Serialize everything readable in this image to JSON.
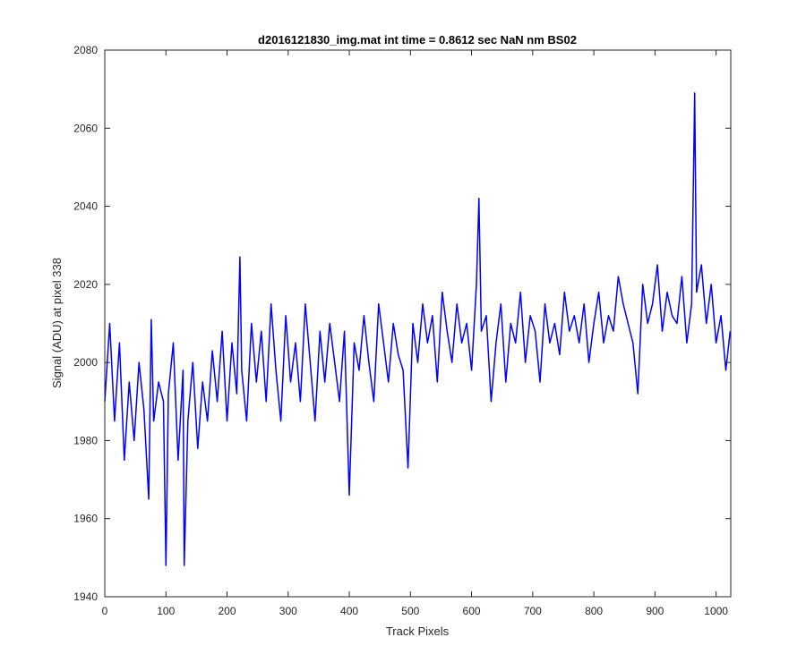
{
  "chart_data": {
    "type": "line",
    "title": "d2016121830_img.mat int time = 0.8612 sec  NaN nm BS02",
    "xlabel": "Track Pixels",
    "ylabel": "Signal (ADU) at pixel 338",
    "xlim": [
      0,
      1024
    ],
    "ylim": [
      1940,
      2080
    ],
    "xticks": [
      0,
      100,
      200,
      300,
      400,
      500,
      600,
      700,
      800,
      900,
      1000
    ],
    "yticks": [
      1940,
      1960,
      1980,
      2000,
      2020,
      2040,
      2060,
      2080
    ],
    "grid": false,
    "series": [
      {
        "color": "#0000ff",
        "x": [
          0,
          8,
          16,
          24,
          32,
          40,
          48,
          56,
          64,
          72,
          76,
          80,
          88,
          96,
          100,
          104,
          112,
          120,
          128,
          130,
          136,
          144,
          152,
          160,
          168,
          176,
          184,
          192,
          200,
          208,
          216,
          221,
          224,
          232,
          240,
          248,
          256,
          264,
          272,
          280,
          288,
          296,
          304,
          312,
          320,
          328,
          336,
          344,
          352,
          360,
          368,
          376,
          384,
          392,
          400,
          408,
          416,
          424,
          432,
          440,
          448,
          456,
          464,
          472,
          480,
          488,
          496,
          504,
          512,
          520,
          528,
          536,
          544,
          552,
          560,
          568,
          576,
          584,
          592,
          600,
          608,
          612,
          616,
          624,
          632,
          640,
          648,
          656,
          664,
          672,
          680,
          688,
          696,
          704,
          712,
          720,
          728,
          736,
          744,
          752,
          760,
          768,
          776,
          784,
          792,
          800,
          808,
          816,
          824,
          832,
          840,
          848,
          856,
          864,
          872,
          880,
          888,
          896,
          904,
          912,
          920,
          928,
          936,
          944,
          952,
          960,
          965,
          968,
          976,
          984,
          992,
          1000,
          1008,
          1016,
          1023
        ],
        "y": [
          1990,
          2010,
          1985,
          2005,
          1975,
          1995,
          1980,
          2000,
          1988,
          1965,
          2011,
          1985,
          1995,
          1990,
          1948,
          1992,
          2005,
          1975,
          1998,
          1948,
          1985,
          2000,
          1978,
          1995,
          1985,
          2003,
          1990,
          2008,
          1985,
          2005,
          1992,
          2027,
          1998,
          1985,
          2010,
          1995,
          2008,
          1990,
          2015,
          1998,
          1985,
          2012,
          1995,
          2005,
          1990,
          2015,
          2000,
          1985,
          2008,
          1995,
          2010,
          2000,
          1990,
          2008,
          1966,
          2005,
          1998,
          2012,
          2000,
          1990,
          2015,
          2005,
          1995,
          2010,
          2002,
          1998,
          1973,
          2010,
          2000,
          2015,
          2005,
          2012,
          1995,
          2018,
          2008,
          2000,
          2015,
          2005,
          2010,
          1998,
          2020,
          2042,
          2008,
          2012,
          1990,
          2005,
          2015,
          1995,
          2010,
          2005,
          2018,
          2000,
          2012,
          2008,
          1995,
          2015,
          2005,
          2010,
          2002,
          2018,
          2008,
          2012,
          2005,
          2015,
          2000,
          2010,
          2018,
          2005,
          2012,
          2008,
          2022,
          2015,
          2010,
          2005,
          1992,
          2020,
          2010,
          2015,
          2025,
          2008,
          2018,
          2012,
          2010,
          2022,
          2005,
          2015,
          2069,
          2018,
          2025,
          2010,
          2020,
          2005,
          2012,
          1998,
          2008
        ]
      }
    ]
  }
}
